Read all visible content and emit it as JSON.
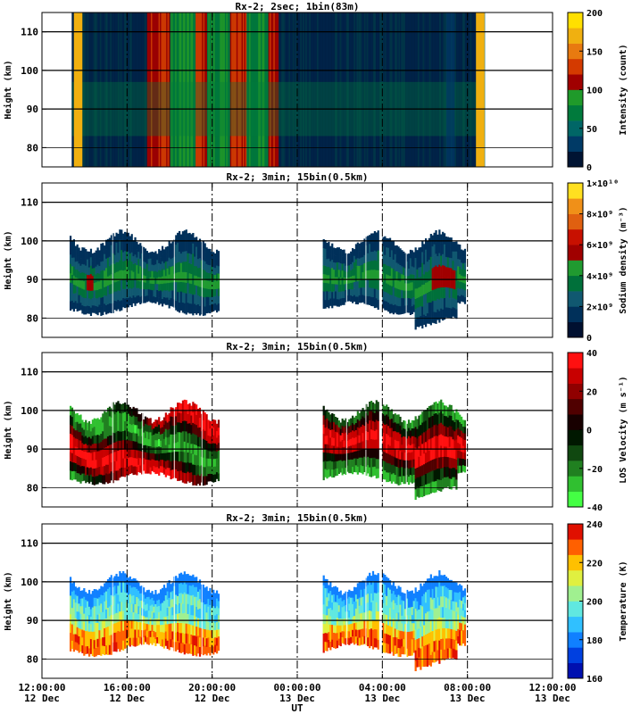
{
  "chart_data": {
    "type": "heatmap",
    "xlabel": "UT",
    "x_ticks": [
      {
        "time": "12:00:00",
        "date": "12 Dec"
      },
      {
        "time": "16:00:00",
        "date": "12 Dec"
      },
      {
        "time": "20:00:00",
        "date": "12 Dec"
      },
      {
        "time": "00:00:00",
        "date": "13 Dec"
      },
      {
        "time": "04:00:00",
        "date": "13 Dec"
      },
      {
        "time": "08:00:00",
        "date": "13 Dec"
      },
      {
        "time": "12:00:00",
        "date": "13 Dec"
      }
    ],
    "x_range_hours": [
      12,
      36
    ],
    "dashed_lines_hours": [
      16,
      20,
      24,
      28,
      32
    ],
    "panels": [
      {
        "title": "Rx-2;  2sec; 1bin(83m)",
        "ylabel": "Height (km)",
        "y_ticks": [
          80,
          90,
          100,
          110
        ],
        "ylim": [
          75,
          115
        ],
        "colorbar_label": "Intensity (count)",
        "colorbar_ticks": [
          "0",
          "50",
          "100",
          "150",
          "200"
        ],
        "colorbar_colors": [
          "#001433",
          "#003a66",
          "#006666",
          "#007a3c",
          "#1f9a2a",
          "#a00000",
          "#d43a00",
          "#e87a10",
          "#f0b010",
          "#ffe000"
        ],
        "data_interval_hours": [
          13.4,
          32.8
        ],
        "bright_bands_hours": [
          13.6,
          17.4,
          19.1,
          23.2,
          32.8
        ]
      },
      {
        "title": "Rx-2; 3min; 15bin(0.5km)",
        "ylabel": "Height (km)",
        "y_ticks": [
          80,
          90,
          100,
          110
        ],
        "ylim": [
          75,
          115
        ],
        "colorbar_label": "Sodium density (m⁻³)",
        "colorbar_ticks": [
          "0",
          "2×10⁹",
          "4×10⁹",
          "6×10⁹",
          "8×10⁹",
          "1×10¹⁰"
        ],
        "colorbar_colors": [
          "#001030",
          "#00305a",
          "#105870",
          "#00703a",
          "#209a30",
          "#a00000",
          "#c81000",
          "#e06010",
          "#f09018",
          "#ffe020"
        ],
        "data_intervals_hours": [
          [
            13.3,
            20.3
          ],
          [
            25.2,
            27.8
          ],
          [
            28.0,
            31.9
          ]
        ]
      },
      {
        "title": "Rx-2; 3min; 15bin(0.5km)",
        "ylabel": "Height (km)",
        "y_ticks": [
          80,
          90,
          100,
          110
        ],
        "ylim": [
          75,
          115
        ],
        "colorbar_label": "LOS Velocity (m s⁻¹)",
        "colorbar_ticks": [
          "-40",
          "-20",
          "0",
          "20",
          "40"
        ],
        "colorbar_colors": [
          "#44ff44",
          "#30c030",
          "#208020",
          "#104810",
          "#001800",
          "#180000",
          "#500000",
          "#900000",
          "#c80000",
          "#ff1010"
        ],
        "data_intervals_hours": [
          [
            13.3,
            20.3
          ],
          [
            25.2,
            27.8
          ],
          [
            28.0,
            31.9
          ]
        ]
      },
      {
        "title": "Rx-2; 3min; 15bin(0.5km)",
        "ylabel": "Height (km)",
        "y_ticks": [
          80,
          90,
          100,
          110
        ],
        "ylim": [
          75,
          115
        ],
        "colorbar_label": "Temperature (K)",
        "colorbar_ticks": [
          "160",
          "180",
          "200",
          "220",
          "240"
        ],
        "colorbar_colors": [
          "#0010b0",
          "#0040e0",
          "#1080ff",
          "#30c0ff",
          "#60e8e0",
          "#a0f090",
          "#e0f040",
          "#ffc000",
          "#ff6000",
          "#e01000"
        ],
        "data_intervals_hours": [
          [
            13.3,
            20.3
          ],
          [
            25.2,
            27.8
          ],
          [
            28.0,
            31.9
          ]
        ]
      }
    ]
  }
}
